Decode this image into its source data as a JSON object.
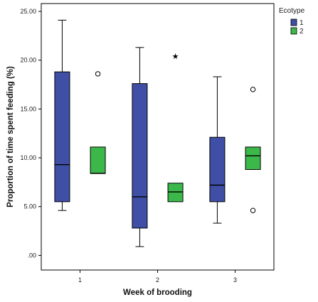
{
  "chart_data": {
    "type": "boxplot",
    "xlabel": "Week of brooding",
    "ylabel": "Proportion of time spent feeding (%)",
    "ylim": [
      -1.5,
      25.8
    ],
    "yticks": [
      ".00",
      "5.00",
      "10.00",
      "15.00",
      "20.00",
      "25.00"
    ],
    "ytick_values": [
      0,
      5,
      10,
      15,
      20,
      25
    ],
    "categories": [
      "1",
      "2",
      "3"
    ],
    "legend": {
      "title": "Ecotype",
      "placement": "top-right",
      "outside": true
    },
    "series": [
      {
        "name": "1",
        "color": "#3F4FA6",
        "boxes": [
          {
            "category": "1",
            "whisker_low": 4.6,
            "q1": 5.5,
            "median": 9.3,
            "q3": 18.8,
            "whisker_high": 24.1,
            "outliers": [],
            "extremes": []
          },
          {
            "category": "2",
            "whisker_low": 0.9,
            "q1": 2.8,
            "median": 6.0,
            "q3": 17.6,
            "whisker_high": 21.3,
            "outliers": [],
            "extremes": []
          },
          {
            "category": "3",
            "whisker_low": 3.3,
            "q1": 5.5,
            "median": 7.2,
            "q3": 12.1,
            "whisker_high": 18.3,
            "outliers": [],
            "extremes": []
          }
        ]
      },
      {
        "name": "2",
        "color": "#3CB84A",
        "boxes": [
          {
            "category": "1",
            "whisker_low": 8.4,
            "q1": 8.4,
            "median": 8.4,
            "q3": 11.1,
            "whisker_high": 11.1,
            "outliers": [
              18.6
            ],
            "extremes": []
          },
          {
            "category": "2",
            "whisker_low": 5.5,
            "q1": 5.5,
            "median": 6.5,
            "q3": 7.4,
            "whisker_high": 7.4,
            "outliers": [],
            "extremes": [
              20.4
            ]
          },
          {
            "category": "3",
            "whisker_low": 8.8,
            "q1": 8.8,
            "median": 10.2,
            "q3": 11.1,
            "whisker_high": 11.1,
            "outliers": [
              17.0,
              4.6
            ],
            "extremes": []
          }
        ]
      }
    ]
  }
}
